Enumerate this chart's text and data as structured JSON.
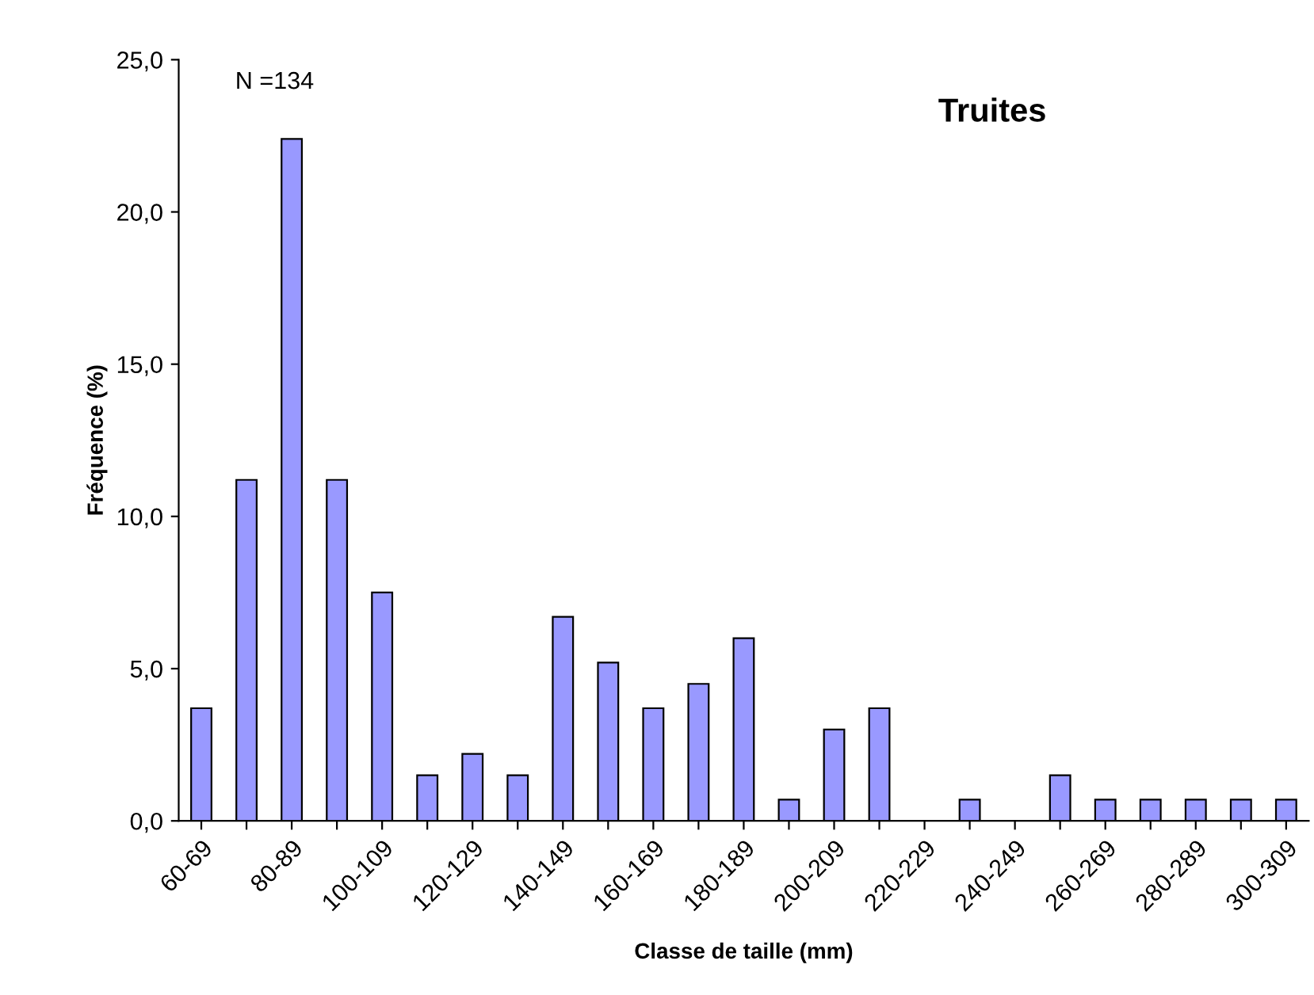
{
  "chart_data": {
    "type": "bar",
    "title": "Truites",
    "xlabel": "Classe de taille (mm)",
    "ylabel": "Fréquence (%)",
    "categories": [
      "60-69",
      null,
      "80-89",
      null,
      "100-109",
      null,
      "120-129",
      null,
      "140-149",
      null,
      "160-169",
      null,
      "180-189",
      null,
      "200-209",
      null,
      "220-229",
      null,
      "240-249",
      null,
      "260-269",
      null,
      "280-289",
      null,
      "300-309"
    ],
    "values": [
      3.7,
      11.2,
      22.4,
      11.2,
      7.5,
      1.5,
      2.2,
      1.5,
      6.7,
      5.2,
      3.7,
      4.5,
      6.0,
      0.7,
      3.0,
      3.7,
      null,
      0.7,
      null,
      1.5,
      0.7,
      0.7,
      0.7,
      0.7,
      0.7
    ],
    "color": "#9999ff",
    "ylim": [
      0,
      25
    ],
    "yticks": [
      {
        "value": 0,
        "label": "0,0"
      },
      {
        "value": 5,
        "label": "5,0"
      },
      {
        "value": 10,
        "label": "10,0"
      },
      {
        "value": 15,
        "label": "15,0"
      },
      {
        "value": 20,
        "label": "20,0"
      },
      {
        "value": 25,
        "label": "25,0"
      }
    ],
    "annotations": [
      "N =134"
    ],
    "grid": false,
    "legend": false
  }
}
